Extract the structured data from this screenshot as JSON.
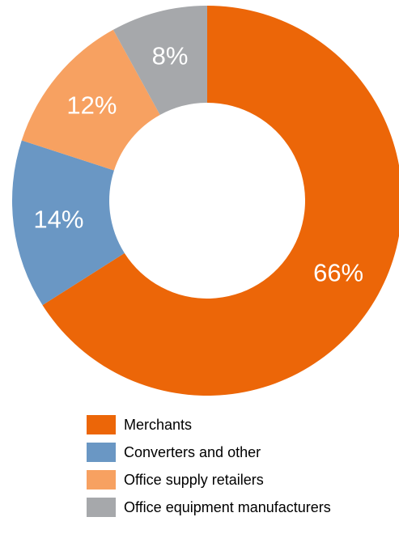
{
  "chart_data": {
    "type": "pie",
    "variant": "donut",
    "title": "",
    "legend_position": "bottom",
    "slices": [
      {
        "name": "Merchants",
        "value": 66,
        "label": "66%",
        "color": "#ec6608"
      },
      {
        "name": "Converters and other",
        "value": 14,
        "label": "14%",
        "color": "#6a97c4"
      },
      {
        "name": "Office supply retailers",
        "value": 12,
        "label": "12%",
        "color": "#f7a161"
      },
      {
        "name": "Office equipment manufacturers",
        "value": 8,
        "label": "8%",
        "color": "#a6a8ab"
      }
    ]
  }
}
